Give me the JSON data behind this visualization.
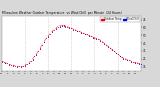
{
  "title": "Milwaukee Weather Outdoor Temperature  vs Wind Chill  per Minute  (24 Hours)",
  "title_fontsize": 2.2,
  "legend_labels": [
    "Outdoor Temp",
    "Wind Chill"
  ],
  "legend_colors": [
    "#ff0000",
    "#0000ff"
  ],
  "line_color_temp": "#ff0000",
  "line_color_windchill": "#0000ff",
  "background_color": "#d8d8d8",
  "plot_bg_color": "#ffffff",
  "y_right_ticks": [
    11,
    21,
    31,
    41,
    51,
    61,
    71
  ],
  "ylim": [
    5,
    76
  ],
  "xlim": [
    0,
    1439
  ],
  "temp_profile": [
    [
      0,
      18
    ],
    [
      20,
      17
    ],
    [
      40,
      16
    ],
    [
      60,
      15
    ],
    [
      80,
      14
    ],
    [
      100,
      13
    ],
    [
      120,
      13
    ],
    [
      140,
      12
    ],
    [
      160,
      12
    ],
    [
      180,
      12
    ],
    [
      200,
      12
    ],
    [
      220,
      12
    ],
    [
      240,
      13
    ],
    [
      260,
      14
    ],
    [
      280,
      16
    ],
    [
      300,
      18
    ],
    [
      320,
      21
    ],
    [
      340,
      24
    ],
    [
      360,
      27
    ],
    [
      380,
      31
    ],
    [
      400,
      35
    ],
    [
      420,
      39
    ],
    [
      440,
      43
    ],
    [
      460,
      47
    ],
    [
      480,
      50
    ],
    [
      500,
      53
    ],
    [
      520,
      56
    ],
    [
      540,
      58
    ],
    [
      560,
      60
    ],
    [
      580,
      62
    ],
    [
      600,
      63
    ],
    [
      620,
      64
    ],
    [
      640,
      64
    ],
    [
      660,
      63
    ],
    [
      680,
      62
    ],
    [
      700,
      61
    ],
    [
      720,
      60
    ],
    [
      740,
      59
    ],
    [
      760,
      58
    ],
    [
      780,
      57
    ],
    [
      800,
      56
    ],
    [
      820,
      55
    ],
    [
      840,
      54
    ],
    [
      860,
      53
    ],
    [
      880,
      52
    ],
    [
      900,
      51
    ],
    [
      920,
      50
    ],
    [
      940,
      49
    ],
    [
      960,
      48
    ],
    [
      980,
      47
    ],
    [
      1000,
      46
    ],
    [
      1020,
      45
    ],
    [
      1040,
      43
    ],
    [
      1060,
      41
    ],
    [
      1080,
      39
    ],
    [
      1100,
      37
    ],
    [
      1120,
      35
    ],
    [
      1140,
      33
    ],
    [
      1160,
      31
    ],
    [
      1180,
      29
    ],
    [
      1200,
      27
    ],
    [
      1220,
      25
    ],
    [
      1240,
      23
    ],
    [
      1260,
      22
    ],
    [
      1280,
      21
    ],
    [
      1300,
      20
    ],
    [
      1320,
      19
    ],
    [
      1340,
      18
    ],
    [
      1360,
      17
    ],
    [
      1380,
      17
    ],
    [
      1400,
      16
    ],
    [
      1420,
      15
    ],
    [
      1439,
      14
    ]
  ],
  "windchill_profile": [
    [
      0,
      17
    ],
    [
      40,
      15
    ],
    [
      80,
      13
    ],
    [
      120,
      12
    ],
    [
      160,
      11
    ],
    [
      200,
      11
    ],
    [
      240,
      12
    ],
    [
      280,
      15
    ],
    [
      320,
      20
    ],
    [
      360,
      26
    ],
    [
      400,
      34
    ],
    [
      440,
      42
    ],
    [
      480,
      49
    ],
    [
      520,
      55
    ],
    [
      560,
      59
    ],
    [
      600,
      62
    ],
    [
      620,
      63
    ],
    [
      640,
      63
    ],
    [
      660,
      62
    ],
    [
      700,
      60
    ],
    [
      740,
      58
    ],
    [
      780,
      56
    ],
    [
      820,
      54
    ],
    [
      860,
      52
    ],
    [
      900,
      50
    ],
    [
      940,
      48
    ],
    [
      980,
      46
    ],
    [
      1020,
      44
    ],
    [
      1060,
      40
    ],
    [
      1100,
      36
    ],
    [
      1140,
      32
    ],
    [
      1180,
      28
    ],
    [
      1220,
      24
    ],
    [
      1260,
      21
    ],
    [
      1300,
      19
    ],
    [
      1340,
      17
    ],
    [
      1380,
      16
    ],
    [
      1420,
      14
    ],
    [
      1439,
      14
    ]
  ],
  "vgrid_positions": [
    240,
    480,
    720,
    960,
    1200
  ],
  "grid_color": "#999999",
  "xtick_every": 60,
  "ytick_fontsize": 2.2,
  "xtick_fontsize": 1.7
}
